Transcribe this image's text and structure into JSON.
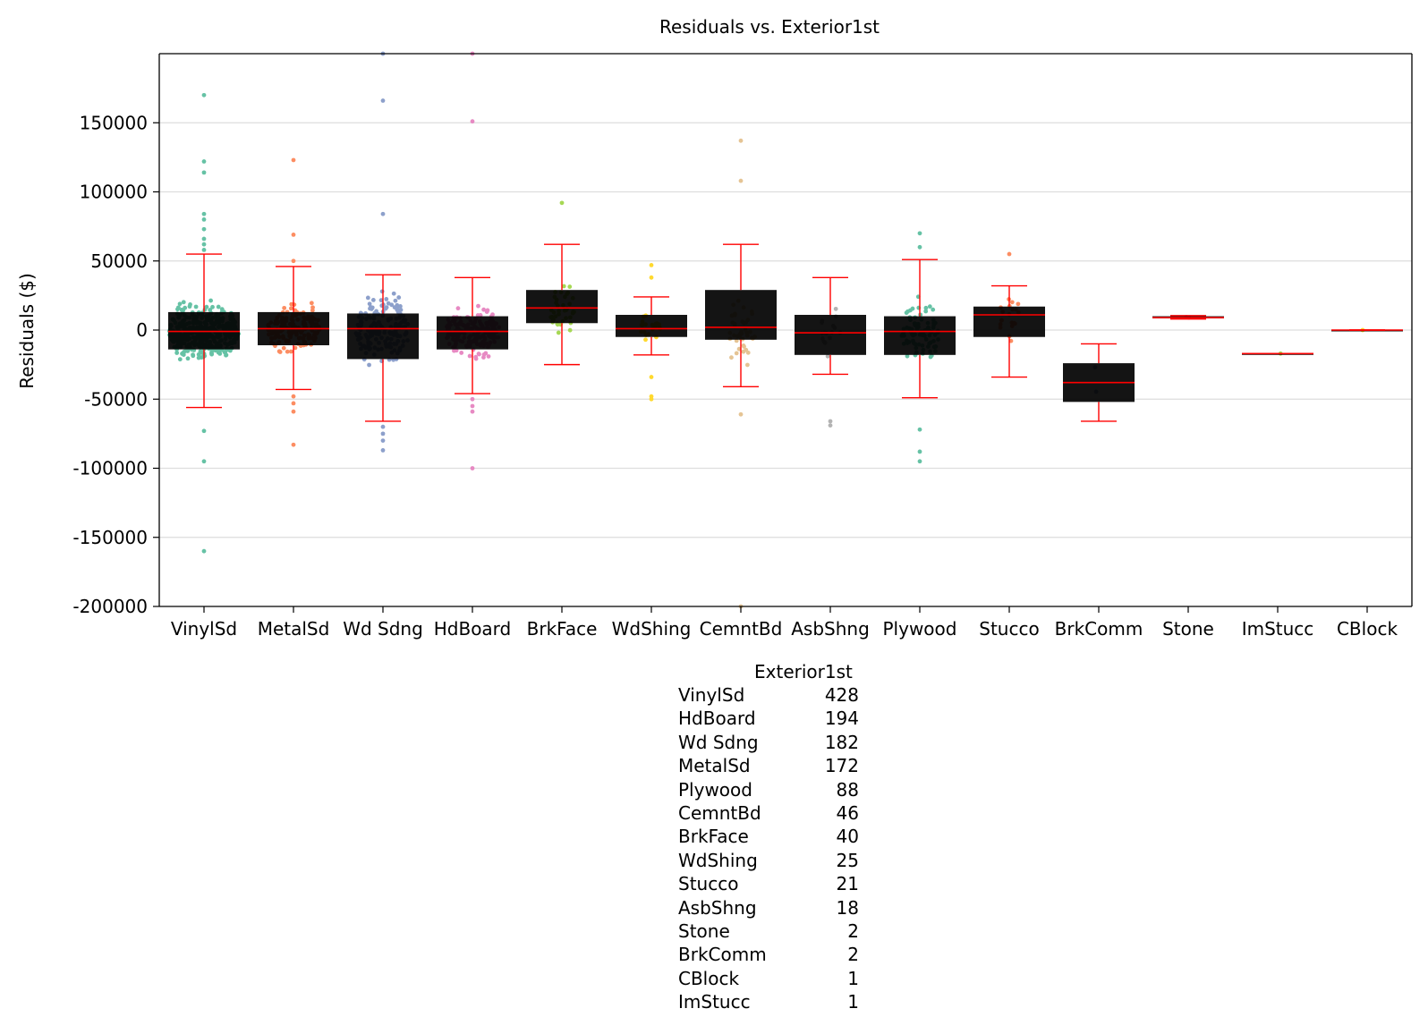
{
  "chart_data": {
    "type": "box",
    "title": "Residuals vs. Exterior1st",
    "xlabel": "",
    "ylabel": "Residuals ($)",
    "ylim": [
      -200000,
      200000
    ],
    "yticks": [
      -200000,
      -150000,
      -100000,
      -50000,
      0,
      50000,
      100000,
      150000
    ],
    "grid": true,
    "categories": [
      "VinylSd",
      "MetalSd",
      "Wd Sdng",
      "HdBoard",
      "BrkFace",
      "WdShing",
      "CemntBd",
      "AsbShng",
      "Plywood",
      "Stucco",
      "BrkComm",
      "Stone",
      "ImStucc",
      "CBlock"
    ],
    "colors": [
      "#66c2a5",
      "#fc8d62",
      "#8da0cb",
      "#e78ac3",
      "#a6d854",
      "#ffd92f",
      "#e5c494",
      "#b3b3b3",
      "#66c2a5",
      "#fc8d62",
      "#8da0cb",
      "#e78ac3",
      "#a6d854",
      "#ffd92f"
    ],
    "boxes": [
      {
        "category": "VinylSd",
        "whislo": -56000,
        "q1": -14000,
        "med": -1000,
        "q3": 13000,
        "whishi": 55000,
        "n": 428,
        "outliers": [
          170000,
          122000,
          114000,
          84000,
          80000,
          73000,
          66000,
          62000,
          58000,
          -73000,
          -95000,
          -160000
        ]
      },
      {
        "category": "MetalSd",
        "whislo": -43000,
        "q1": -11000,
        "med": 1000,
        "q3": 13000,
        "whishi": 46000,
        "n": 172,
        "outliers": [
          123000,
          69000,
          50000,
          -48000,
          -53000,
          -59000,
          -83000
        ]
      },
      {
        "category": "Wd Sdng",
        "whislo": -66000,
        "q1": -21000,
        "med": 1000,
        "q3": 12000,
        "whishi": 40000,
        "n": 182,
        "outliers": [
          200000,
          166000,
          84000,
          -70000,
          -75000,
          -80000,
          -87000
        ]
      },
      {
        "category": "HdBoard",
        "whislo": -46000,
        "q1": -14000,
        "med": -1000,
        "q3": 10000,
        "whishi": 38000,
        "n": 194,
        "outliers": [
          200000,
          151000,
          -50000,
          -55000,
          -59000,
          -100000
        ]
      },
      {
        "category": "BrkFace",
        "whislo": -25000,
        "q1": 5000,
        "med": 16000,
        "q3": 29000,
        "whishi": 62000,
        "n": 40,
        "outliers": [
          92000
        ]
      },
      {
        "category": "WdShing",
        "whislo": -18000,
        "q1": -5000,
        "med": 1000,
        "q3": 11000,
        "whishi": 24000,
        "n": 25,
        "outliers": [
          47000,
          38000,
          -34000,
          -48000,
          -50000
        ]
      },
      {
        "category": "CemntBd",
        "whislo": -41000,
        "q1": -7000,
        "med": 2000,
        "q3": 29000,
        "whishi": 62000,
        "n": 46,
        "outliers": [
          137000,
          108000,
          -61000,
          -200000
        ]
      },
      {
        "category": "AsbShng",
        "whislo": -32000,
        "q1": -18000,
        "med": -2000,
        "q3": 11000,
        "whishi": 38000,
        "n": 18,
        "outliers": [
          -66000,
          -69000
        ]
      },
      {
        "category": "Plywood",
        "whislo": -49000,
        "q1": -18000,
        "med": -1000,
        "q3": 10000,
        "whishi": 51000,
        "n": 88,
        "outliers": [
          70000,
          60000,
          -72000,
          -88000,
          -95000
        ]
      },
      {
        "category": "Stucco",
        "whislo": -34000,
        "q1": -5000,
        "med": 11000,
        "q3": 17000,
        "whishi": 32000,
        "n": 21,
        "outliers": [
          55000
        ]
      },
      {
        "category": "BrkComm",
        "whislo": -66000,
        "q1": -52000,
        "med": -38000,
        "q3": -24000,
        "whishi": -10000,
        "n": 2,
        "outliers": []
      },
      {
        "category": "Stone",
        "whislo": 8000,
        "q1": 8500,
        "med": 9000,
        "q3": 10000,
        "whishi": 10500,
        "n": 2,
        "outliers": []
      },
      {
        "category": "ImStucc",
        "whislo": -17000,
        "q1": -17000,
        "med": -17000,
        "q3": -17000,
        "whishi": -17000,
        "n": 1,
        "outliers": []
      },
      {
        "category": "CBlock",
        "whislo": 0,
        "q1": 0,
        "med": 0,
        "q3": 0,
        "whishi": 0,
        "n": 1,
        "outliers": []
      }
    ],
    "box_color": "#000000",
    "median_color": "#ff0000",
    "whisker_color": "#ff0000"
  },
  "counts_table": {
    "header": "Exterior1st",
    "rows": [
      {
        "name": "VinylSd",
        "count": "428"
      },
      {
        "name": "HdBoard",
        "count": "194"
      },
      {
        "name": "Wd Sdng",
        "count": "182"
      },
      {
        "name": "MetalSd",
        "count": "172"
      },
      {
        "name": "Plywood",
        "count": "88"
      },
      {
        "name": "CemntBd",
        "count": "46"
      },
      {
        "name": "BrkFace",
        "count": "40"
      },
      {
        "name": "WdShing",
        "count": "25"
      },
      {
        "name": "Stucco",
        "count": "21"
      },
      {
        "name": "AsbShng",
        "count": "18"
      },
      {
        "name": "Stone",
        "count": "2"
      },
      {
        "name": "BrkComm",
        "count": "2"
      },
      {
        "name": "CBlock",
        "count": "1"
      },
      {
        "name": "ImStucc",
        "count": "1"
      }
    ]
  }
}
